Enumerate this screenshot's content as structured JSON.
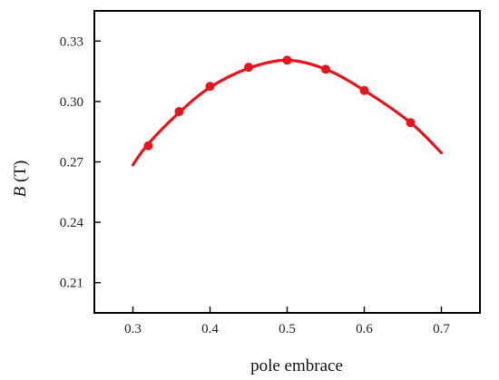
{
  "chart_data": {
    "type": "line",
    "xlabel": "pole embrace",
    "ylabel_italic": "B",
    "ylabel_unit": " (T)",
    "xlim": [
      0.25,
      0.75
    ],
    "ylim": [
      0.195,
      0.345
    ],
    "x_ticks": [
      {
        "value": 0.3,
        "label": "0.3"
      },
      {
        "value": 0.4,
        "label": "0.4"
      },
      {
        "value": 0.5,
        "label": "0.5"
      },
      {
        "value": 0.6,
        "label": "0.6"
      },
      {
        "value": 0.7,
        "label": "0.7"
      }
    ],
    "y_ticks": [
      {
        "value": 0.21,
        "label": "0.21"
      },
      {
        "value": 0.24,
        "label": "0.24"
      },
      {
        "value": 0.27,
        "label": "0.27"
      },
      {
        "value": 0.3,
        "label": "0.30"
      },
      {
        "value": 0.33,
        "label": "0.33"
      }
    ],
    "grid": false,
    "series": [
      {
        "color": "#e8141b",
        "curve": [
          {
            "x": 0.3,
            "y": 0.2685
          },
          {
            "x": 0.32,
            "y": 0.279
          },
          {
            "x": 0.36,
            "y": 0.2945
          },
          {
            "x": 0.4,
            "y": 0.307
          },
          {
            "x": 0.45,
            "y": 0.3165
          },
          {
            "x": 0.5,
            "y": 0.3205
          },
          {
            "x": 0.55,
            "y": 0.316
          },
          {
            "x": 0.6,
            "y": 0.3055
          },
          {
            "x": 0.66,
            "y": 0.2895
          },
          {
            "x": 0.7,
            "y": 0.2745
          }
        ],
        "markers": [
          {
            "x": 0.32,
            "y": 0.278
          },
          {
            "x": 0.36,
            "y": 0.295
          },
          {
            "x": 0.4,
            "y": 0.3075
          },
          {
            "x": 0.45,
            "y": 0.317
          },
          {
            "x": 0.5,
            "y": 0.3205
          },
          {
            "x": 0.55,
            "y": 0.316
          },
          {
            "x": 0.6,
            "y": 0.3055
          },
          {
            "x": 0.66,
            "y": 0.2895
          }
        ]
      }
    ]
  }
}
